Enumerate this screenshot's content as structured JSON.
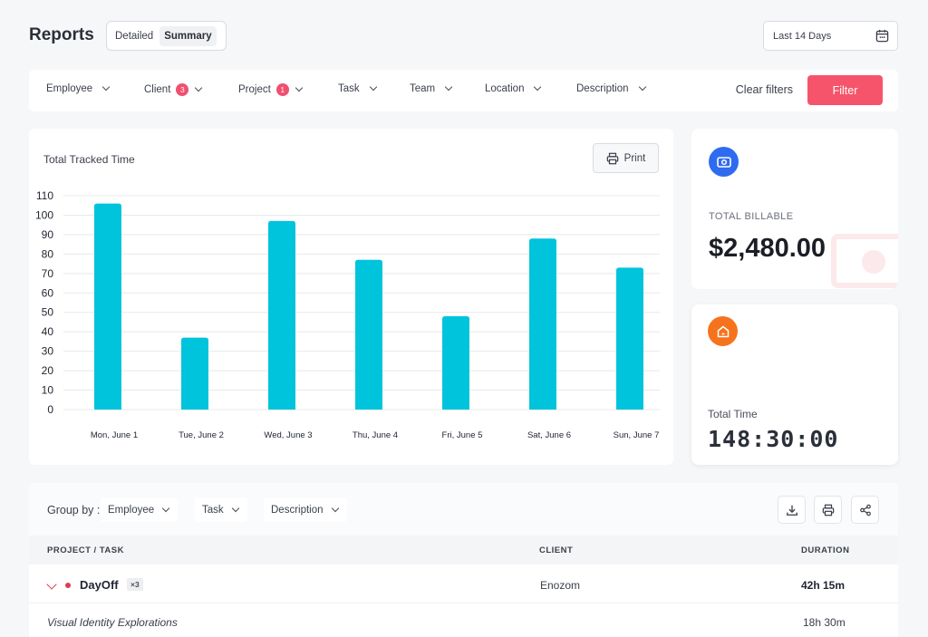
{
  "header": {
    "title": "Reports",
    "view_options": [
      "Detailed",
      "Summary"
    ],
    "active_view": "Summary",
    "date_range": "Last 14 Days"
  },
  "filters": {
    "items": [
      {
        "label": "Employee",
        "badge": ""
      },
      {
        "label": "Client",
        "badge": "3"
      },
      {
        "label": "Project",
        "badge": "1"
      },
      {
        "label": "Task",
        "badge": ""
      },
      {
        "label": "Team",
        "badge": ""
      },
      {
        "label": "Location",
        "badge": ""
      },
      {
        "label": "Description",
        "badge": ""
      }
    ],
    "clear_label": "Clear filters",
    "filter_label": "Filter"
  },
  "chart_card": {
    "title": "Total Tracked Time",
    "print_label": "Print"
  },
  "chart_data": {
    "type": "bar",
    "title": "Total Tracked Time",
    "categories": [
      "Mon, June 1",
      "Tue, June 2",
      "Wed, June 3",
      "Thu, June 4",
      "Fri, June 5",
      "Sat, June 6",
      "Sun, June 7"
    ],
    "values": [
      106,
      37,
      97,
      77,
      48,
      88,
      73
    ],
    "yticks": [
      0,
      10,
      20,
      30,
      40,
      50,
      60,
      70,
      80,
      90,
      100,
      110
    ],
    "ylim": [
      0,
      110
    ],
    "grid": true,
    "xlabel": "",
    "ylabel": "",
    "bar_color": "#00c4db"
  },
  "stats": {
    "billable_label": "TOTAL BILLABLE",
    "billable_value": "$2,480.00",
    "total_time_label": "Total Time",
    "total_time_value": "148:30:00",
    "colors": {
      "billable_icon": "#2f6bf0",
      "time_icon": "#f6731d"
    }
  },
  "table": {
    "group_by_label": "Group by :",
    "group_selects": [
      "Employee",
      "Task",
      "Description"
    ],
    "tools": [
      "download-icon",
      "print-icon",
      "share-icon"
    ],
    "columns": [
      "PROJECT / TASK",
      "CLIENT",
      "DURATION"
    ],
    "project_row": {
      "name": "DayOff",
      "count": "×3",
      "client": "Enozom",
      "duration": "42h 15m"
    },
    "task_row": {
      "name": "Visual Identity Explorations",
      "duration": "18h 30m"
    }
  }
}
